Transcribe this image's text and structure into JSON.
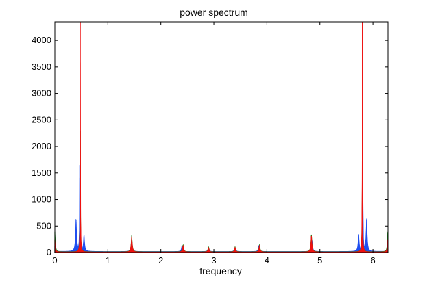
{
  "chart_data": {
    "type": "line",
    "title": "power spectrum",
    "xlabel": "frequency",
    "ylabel": "",
    "xlim": [
      0,
      6.2832
    ],
    "ylim": [
      0,
      4350
    ],
    "grid": false,
    "x_ticks": [
      0,
      1,
      2,
      3,
      4,
      5,
      6
    ],
    "x_tick_labels": [
      "0",
      "1",
      "2",
      "3",
      "4",
      "5",
      "6"
    ],
    "y_ticks": [
      0,
      500,
      1000,
      1500,
      2000,
      2500,
      3000,
      3500,
      4000
    ],
    "y_tick_labels": [
      "0",
      "500",
      "1000",
      "1500",
      "2000",
      "2500",
      "3000",
      "3500",
      "4000"
    ],
    "colors": {
      "blue": "#1f4ff0",
      "green": "#1a8a1a",
      "red": "#ee1111"
    },
    "series": [
      {
        "color": "blue",
        "baseline": 20,
        "peaks": [
          {
            "x": 0.0,
            "y": 120,
            "width": 0.03
          },
          {
            "x": 0.4,
            "y": 620,
            "width": 0.03
          },
          {
            "x": 0.47,
            "y": 1650,
            "width": 0.012
          },
          {
            "x": 0.55,
            "y": 320,
            "width": 0.03
          },
          {
            "x": 1.45,
            "y": 220,
            "width": 0.03
          },
          {
            "x": 2.4,
            "y": 120,
            "width": 0.03
          },
          {
            "x": 2.9,
            "y": 80,
            "width": 0.03
          },
          {
            "x": 3.4,
            "y": 80,
            "width": 0.03
          },
          {
            "x": 3.85,
            "y": 120,
            "width": 0.03
          },
          {
            "x": 4.85,
            "y": 220,
            "width": 0.03
          },
          {
            "x": 5.73,
            "y": 320,
            "width": 0.03
          },
          {
            "x": 5.81,
            "y": 1650,
            "width": 0.012
          },
          {
            "x": 5.88,
            "y": 620,
            "width": 0.03
          },
          {
            "x": 6.28,
            "y": 120,
            "width": 0.03
          }
        ]
      },
      {
        "color": "green",
        "baseline": 15,
        "peaks": [
          {
            "x": 0.0,
            "y": 390,
            "width": 0.025
          },
          {
            "x": 0.48,
            "y": 2300,
            "width": 0.012
          },
          {
            "x": 1.45,
            "y": 320,
            "width": 0.03
          },
          {
            "x": 2.42,
            "y": 140,
            "width": 0.03
          },
          {
            "x": 2.9,
            "y": 100,
            "width": 0.03
          },
          {
            "x": 3.4,
            "y": 100,
            "width": 0.03
          },
          {
            "x": 3.86,
            "y": 140,
            "width": 0.03
          },
          {
            "x": 4.84,
            "y": 330,
            "width": 0.03
          },
          {
            "x": 5.8,
            "y": 2300,
            "width": 0.012
          },
          {
            "x": 6.28,
            "y": 390,
            "width": 0.025
          }
        ]
      },
      {
        "color": "red",
        "baseline": 10,
        "peaks": [
          {
            "x": 0.0,
            "y": 250,
            "width": 0.025
          },
          {
            "x": 0.48,
            "y": 4350,
            "width": 0.009
          },
          {
            "x": 1.45,
            "y": 300,
            "width": 0.03
          },
          {
            "x": 2.42,
            "y": 130,
            "width": 0.03
          },
          {
            "x": 2.9,
            "y": 90,
            "width": 0.03
          },
          {
            "x": 3.4,
            "y": 90,
            "width": 0.03
          },
          {
            "x": 3.86,
            "y": 130,
            "width": 0.03
          },
          {
            "x": 4.84,
            "y": 310,
            "width": 0.03
          },
          {
            "x": 5.8,
            "y": 4350,
            "width": 0.009
          },
          {
            "x": 6.28,
            "y": 250,
            "width": 0.025
          }
        ]
      }
    ]
  }
}
